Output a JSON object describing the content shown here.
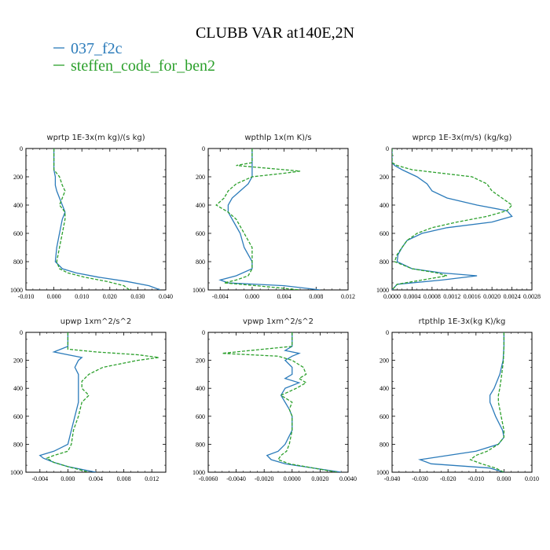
{
  "figure": {
    "title": "CLUBB VAR at140E,2N",
    "legend": [
      {
        "label": "037_f2c",
        "color": "#2b7bba",
        "style": "solid"
      },
      {
        "label": "steffen_code_for_ben2",
        "color": "#2ca02c",
        "style": "dashed"
      }
    ]
  },
  "chart_data": [
    {
      "type": "line",
      "title": "wprtp  1E-3x(m kg)/(s kg)",
      "xlim": [
        -0.01,
        0.04
      ],
      "xticks": [
        "-0.010",
        "0.000",
        "0.010",
        "0.020",
        "0.030",
        "0.040"
      ],
      "xtick_values": [
        -0.01,
        0.0,
        0.01,
        0.02,
        0.03,
        0.04
      ],
      "ylim": [
        0,
        1000
      ],
      "yticks": [
        0,
        200,
        400,
        600,
        800,
        1000
      ],
      "y": [
        0,
        150,
        200,
        260,
        300,
        350,
        400,
        450,
        500,
        600,
        700,
        800,
        850,
        880,
        910,
        940,
        970,
        1000
      ],
      "series": [
        {
          "name": "037_f2c",
          "values": [
            0.0,
            0.0,
            0.0005,
            0.0005,
            0.001,
            0.002,
            0.003,
            0.004,
            0.003,
            0.002,
            0.001,
            0.0005,
            0.003,
            0.008,
            0.016,
            0.026,
            0.034,
            0.038
          ]
        },
        {
          "name": "steffen_code_for_ben2",
          "values": [
            0.0,
            0.0,
            0.002,
            0.003,
            0.004,
            0.003,
            0.002,
            0.004,
            0.004,
            0.003,
            0.002,
            0.001,
            0.002,
            0.005,
            0.011,
            0.019,
            0.025,
            0.027
          ]
        }
      ]
    },
    {
      "type": "line",
      "title": "wpthlp  1x(m K)/s",
      "xlim": [
        -0.0055,
        0.012
      ],
      "xticks": [
        "-0.004",
        "0.000",
        "0.004",
        "0.008",
        "0.012"
      ],
      "xtick_values": [
        -0.004,
        0.0,
        0.004,
        0.008,
        0.012
      ],
      "ylim": [
        0,
        1000
      ],
      "yticks": [
        0,
        200,
        400,
        600,
        800,
        1000
      ],
      "y": [
        0,
        100,
        120,
        140,
        160,
        175,
        200,
        250,
        300,
        350,
        400,
        450,
        500,
        550,
        600,
        700,
        800,
        850,
        900,
        930,
        950,
        970,
        1000
      ],
      "series": [
        {
          "name": "037_f2c",
          "values": [
            0.0,
            0.0,
            0.0,
            0.0,
            0.0,
            0.0,
            0.0,
            -0.0005,
            -0.0015,
            -0.0025,
            -0.003,
            -0.003,
            -0.0025,
            -0.002,
            -0.0015,
            -0.001,
            0.0,
            0.0,
            -0.002,
            -0.004,
            -0.003,
            0.004,
            0.0085
          ]
        },
        {
          "name": "steffen_code_for_ben2",
          "values": [
            0.0,
            0.0,
            -0.002,
            0.002,
            0.006,
            0.004,
            0.0,
            -0.002,
            -0.003,
            -0.0035,
            -0.0045,
            -0.003,
            -0.002,
            -0.0015,
            -0.001,
            0.0,
            0.0,
            0.0,
            -0.0005,
            -0.002,
            -0.0035,
            0.0005,
            0.006
          ]
        }
      ]
    },
    {
      "type": "line",
      "title": "wprcp  1E-3x(m/s) (kg/kg)",
      "xlim": [
        0,
        0.0028
      ],
      "xticks": [
        "0.0000",
        "0.0004",
        "0.0008",
        "0.0012",
        "0.0016",
        "0.0020",
        "0.0024",
        "0.0028"
      ],
      "xtick_values": [
        0,
        0.0004,
        0.0008,
        0.0012,
        0.0016,
        0.002,
        0.0024,
        0.0028
      ],
      "ylim": [
        0,
        1000
      ],
      "yticks": [
        0,
        200,
        400,
        600,
        800,
        1000
      ],
      "y": [
        0,
        100,
        120,
        150,
        200,
        250,
        300,
        350,
        400,
        440,
        480,
        520,
        560,
        600,
        650,
        700,
        750,
        800,
        850,
        880,
        900,
        930,
        960,
        1000
      ],
      "series": [
        {
          "name": "037_f2c",
          "values": [
            0.0,
            0.0,
            5e-05,
            0.0002,
            0.0005,
            0.0007,
            0.0008,
            0.0011,
            0.0017,
            0.0023,
            0.0024,
            0.002,
            0.0011,
            0.0006,
            0.0003,
            0.0002,
            0.00012,
            0.0001,
            0.0004,
            0.001,
            0.0017,
            0.001,
            0.0001,
            0.0
          ]
        },
        {
          "name": "steffen_code_for_ben2",
          "values": [
            0.0,
            0.0,
            0.0001,
            0.0004,
            0.0016,
            0.0019,
            0.002,
            0.0022,
            0.0024,
            0.0023,
            0.0019,
            0.0013,
            0.0008,
            0.0005,
            0.0003,
            0.0002,
            0.0001,
            5e-05,
            0.0004,
            0.0009,
            0.0011,
            0.0006,
            0.0001,
            0.0
          ]
        }
      ]
    },
    {
      "type": "line",
      "title": "upwp  1xm^2/s^2",
      "xlim": [
        -0.006,
        0.014
      ],
      "xticks": [
        "-0.004",
        "0.000",
        "0.004",
        "0.008",
        "0.012"
      ],
      "xtick_values": [
        -0.004,
        0.0,
        0.004,
        0.008,
        0.012
      ],
      "ylim": [
        0,
        1000
      ],
      "yticks": [
        0,
        200,
        400,
        600,
        800,
        1000
      ],
      "y": [
        0,
        100,
        120,
        140,
        160,
        180,
        200,
        250,
        300,
        350,
        400,
        450,
        500,
        600,
        700,
        800,
        850,
        880,
        900,
        930,
        960,
        1000
      ],
      "series": [
        {
          "name": "037_f2c",
          "values": [
            0.0,
            0.0,
            -0.001,
            -0.002,
            0.0,
            0.002,
            0.0015,
            0.001,
            0.0015,
            0.0015,
            0.0015,
            0.0015,
            0.0015,
            0.001,
            0.0005,
            0.0,
            -0.002,
            -0.004,
            -0.0035,
            -0.002,
            0.0,
            0.004
          ]
        },
        {
          "name": "steffen_code_for_ben2",
          "values": [
            0.0,
            0.0,
            0.0,
            0.004,
            0.01,
            0.013,
            0.01,
            0.005,
            0.003,
            0.002,
            0.002,
            0.003,
            0.002,
            0.0015,
            0.0008,
            0.0005,
            0.0,
            -0.002,
            -0.003,
            -0.002,
            0.0,
            0.003
          ]
        }
      ]
    },
    {
      "type": "line",
      "title": "vpwp  1xm^2/s^2",
      "xlim": [
        -0.006,
        0.004
      ],
      "xticks": [
        "-0.0060",
        "-0.0040",
        "-0.0020",
        "0.0000",
        "0.0020",
        "0.0040"
      ],
      "xtick_values": [
        -0.006,
        -0.004,
        -0.002,
        0.0,
        0.002,
        0.004
      ],
      "ylim": [
        0,
        1000
      ],
      "yticks": [
        0,
        200,
        400,
        600,
        800,
        1000
      ],
      "y": [
        0,
        100,
        130,
        150,
        170,
        200,
        250,
        300,
        330,
        360,
        400,
        450,
        500,
        550,
        600,
        700,
        800,
        850,
        880,
        910,
        940,
        1000
      ],
      "series": [
        {
          "name": "037_f2c",
          "values": [
            0.0,
            0.0,
            -0.0005,
            0.0005,
            0.0,
            -0.0005,
            0.0,
            0.0,
            -0.0005,
            0.0005,
            -0.0005,
            -0.0008,
            -0.0005,
            -0.0002,
            0.0,
            0.0,
            -0.0005,
            -0.001,
            -0.0018,
            -0.0015,
            -0.0005,
            0.0035
          ]
        },
        {
          "name": "steffen_code_for_ben2",
          "values": [
            0.0,
            0.0,
            -0.003,
            -0.005,
            -0.001,
            0.0,
            0.0008,
            0.001,
            0.0005,
            0.001,
            0.0003,
            -0.0008,
            0.0,
            -0.0002,
            0.0,
            0.0,
            -0.0002,
            -0.0004,
            -0.0008,
            -0.001,
            -0.0002,
            0.0032
          ]
        }
      ]
    },
    {
      "type": "line",
      "title": "rtpthlp  1E-3x(kg K)/kg",
      "xlim": [
        -0.04,
        0.01
      ],
      "xticks": [
        "-0.040",
        "-0.030",
        "-0.020",
        "-0.010",
        "0.000",
        "0.010"
      ],
      "xtick_values": [
        -0.04,
        -0.03,
        -0.02,
        -0.01,
        0.0,
        0.01
      ],
      "ylim": [
        0,
        1000
      ],
      "yticks": [
        0,
        200,
        400,
        600,
        800,
        1000
      ],
      "y": [
        0,
        100,
        200,
        300,
        400,
        450,
        500,
        550,
        600,
        700,
        750,
        800,
        850,
        880,
        910,
        940,
        970,
        1000
      ],
      "series": [
        {
          "name": "037_f2c",
          "values": [
            0.0,
            0.0,
            -0.0003,
            -0.0015,
            -0.0035,
            -0.005,
            -0.005,
            -0.004,
            -0.003,
            -0.0005,
            0.0,
            -0.002,
            -0.01,
            -0.02,
            -0.03,
            -0.026,
            -0.005,
            0.0
          ]
        },
        {
          "name": "steffen_code_for_ben2",
          "values": [
            0.0,
            0.0,
            -0.0002,
            -0.0008,
            -0.0015,
            -0.002,
            -0.002,
            -0.0015,
            -0.001,
            0.0,
            0.0,
            -0.002,
            -0.006,
            -0.01,
            -0.012,
            -0.008,
            -0.003,
            0.0
          ]
        }
      ]
    }
  ]
}
